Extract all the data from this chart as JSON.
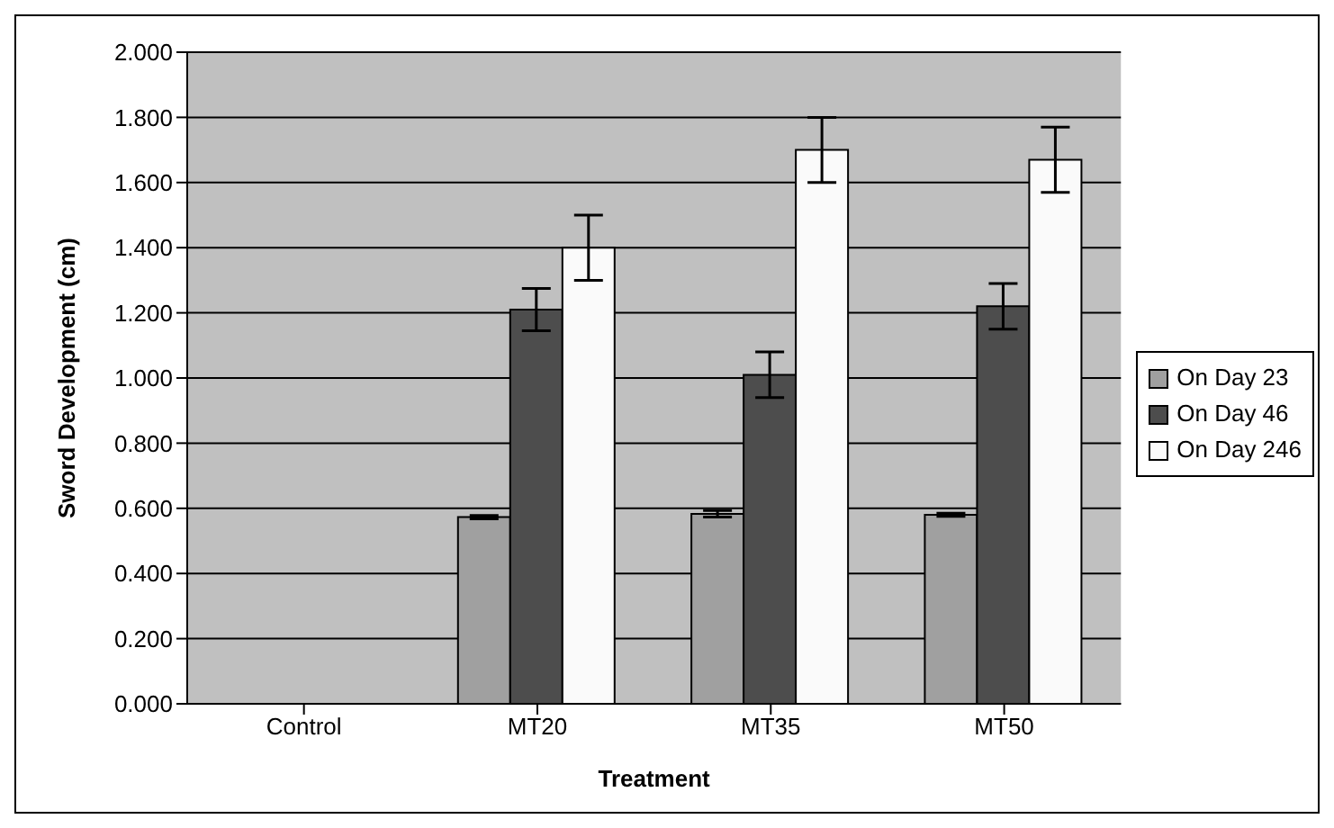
{
  "chart_data": {
    "type": "bar",
    "xlabel": "Treatment",
    "ylabel": "Sword Development (cm)",
    "categories": [
      "Control",
      "MT20",
      "MT35",
      "MT50"
    ],
    "series": [
      {
        "name": "On Day 23",
        "color": "#a0a0a0",
        "values": [
          null,
          0.573,
          0.583,
          0.58
        ],
        "errors": [
          null,
          0.005,
          0.01,
          0.005
        ]
      },
      {
        "name": "On Day 46",
        "color": "#4d4d4d",
        "values": [
          null,
          1.21,
          1.01,
          1.22
        ],
        "errors": [
          null,
          0.065,
          0.07,
          0.07
        ]
      },
      {
        "name": "On Day 246",
        "color": "#fafafa",
        "values": [
          null,
          1.4,
          1.7,
          1.67
        ],
        "errors": [
          null,
          0.1,
          0.1,
          0.1
        ]
      }
    ],
    "ylim": [
      0,
      2
    ],
    "yticks": [
      {
        "value": 0,
        "label": "0.000"
      },
      {
        "value": 0.2,
        "label": "0.200"
      },
      {
        "value": 0.4,
        "label": "0.400"
      },
      {
        "value": 0.6,
        "label": "0.600"
      },
      {
        "value": 0.8,
        "label": "0.800"
      },
      {
        "value": 1,
        "label": "1.000"
      },
      {
        "value": 1.2,
        "label": "1.200"
      },
      {
        "value": 1.4,
        "label": "1.400"
      },
      {
        "value": 1.6,
        "label": "1.600"
      },
      {
        "value": 1.8,
        "label": "1.800"
      },
      {
        "value": 2,
        "label": "2.000"
      }
    ],
    "grid": "y",
    "legend": "right"
  }
}
